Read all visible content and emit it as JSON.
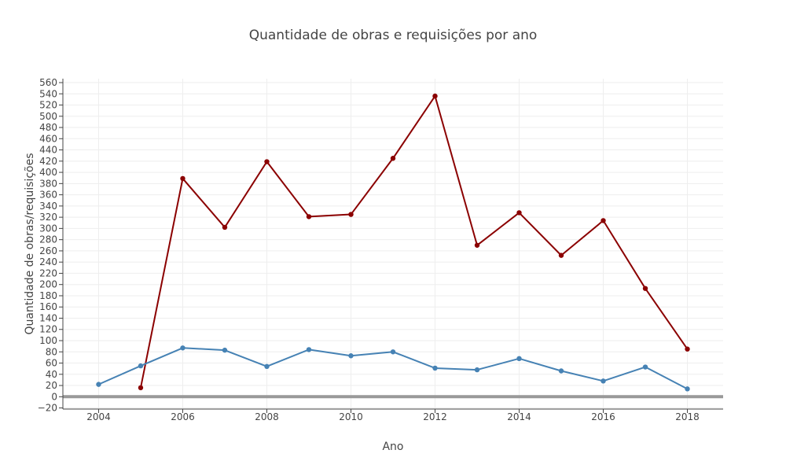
{
  "chart_data": {
    "type": "line",
    "title": "Quantidade de obras e requisições por ano",
    "xlabel": "Ano",
    "ylabel": "Quantidade de obras/requisições",
    "xlim": [
      2003.15,
      2018.85
    ],
    "ylim": [
      -22,
      567
    ],
    "x_ticks": [
      2004,
      2006,
      2008,
      2010,
      2012,
      2014,
      2016,
      2018
    ],
    "y_ticks": [
      -20,
      0,
      20,
      40,
      60,
      80,
      100,
      120,
      140,
      160,
      180,
      200,
      220,
      240,
      260,
      280,
      300,
      320,
      340,
      360,
      380,
      400,
      420,
      440,
      460,
      480,
      500,
      520,
      540,
      560
    ],
    "y_tick_labels": [
      "−20",
      "0",
      "20",
      "40",
      "60",
      "80",
      "100",
      "120",
      "140",
      "160",
      "180",
      "200",
      "220",
      "240",
      "260",
      "280",
      "300",
      "320",
      "340",
      "360",
      "380",
      "400",
      "420",
      "440",
      "460",
      "480",
      "500",
      "520",
      "540",
      "560"
    ],
    "grid": true,
    "legend": "none",
    "series": [
      {
        "color": "#8b0000",
        "x": [
          2005,
          2006,
          2007,
          2008,
          2009,
          2010,
          2011,
          2012,
          2013,
          2014,
          2015,
          2016,
          2017,
          2018
        ],
        "y": [
          16,
          389,
          302,
          419,
          321,
          325,
          425,
          536,
          270,
          328,
          252,
          314,
          193,
          85
        ]
      },
      {
        "color": "#4682b4",
        "x": [
          2004,
          2005,
          2006,
          2007,
          2008,
          2009,
          2010,
          2011,
          2012,
          2013,
          2014,
          2015,
          2016,
          2017,
          2018
        ],
        "y": [
          22,
          55,
          87,
          83,
          54,
          84,
          73,
          80,
          51,
          48,
          68,
          46,
          28,
          53,
          14
        ]
      }
    ]
  }
}
